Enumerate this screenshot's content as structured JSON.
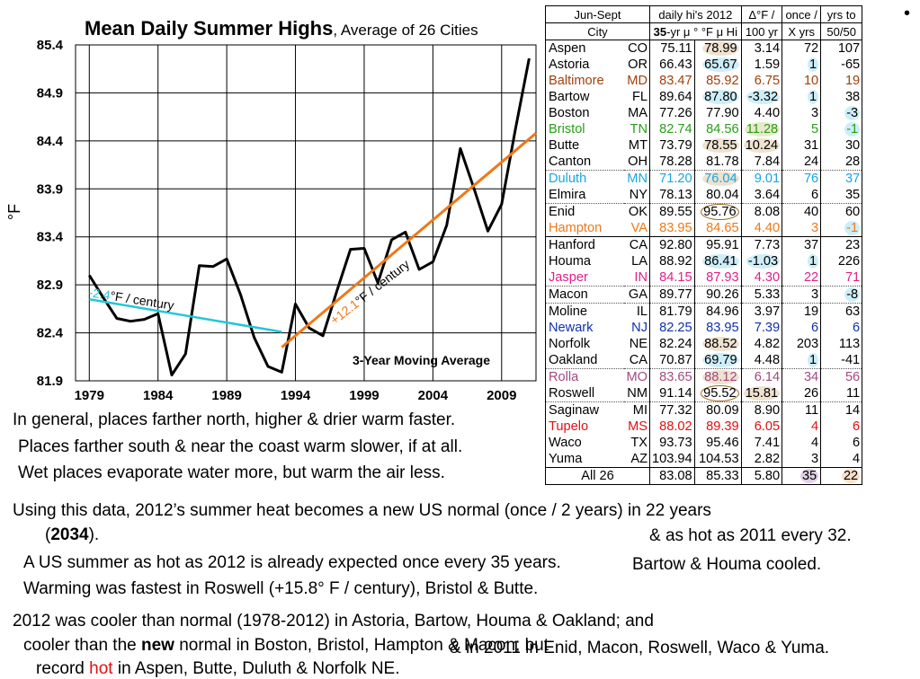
{
  "chart_data": {
    "type": "line",
    "title": "Mean Daily Summer Highs",
    "subtitle": "Average of 26 Cities",
    "ylabel": "°F",
    "xlim": [
      1978,
      2011.5
    ],
    "ylim": [
      81.9,
      85.4
    ],
    "yticks": [
      "81.9",
      "82.4",
      "82.9",
      "83.4",
      "83.9",
      "84.4",
      "84.9",
      "85.4"
    ],
    "xticks": [
      "1979",
      "1984",
      "1989",
      "1994",
      "1999",
      "2004",
      "2009"
    ],
    "grid": true,
    "annotation": "3-Year Moving Average",
    "series": [
      {
        "color": "#000000",
        "x": [
          1979,
          1980,
          1981,
          1982,
          1983,
          1984,
          1985,
          1986,
          1987,
          1988,
          1989,
          1990,
          1991,
          1992,
          1993,
          1994,
          1995,
          1996,
          1997,
          1998,
          1999,
          2000,
          2001,
          2002,
          2003,
          2004,
          2005,
          2006,
          2007,
          2008,
          2009,
          2010,
          2011
        ],
        "y": [
          83.0,
          82.77,
          82.55,
          82.52,
          82.54,
          82.6,
          81.96,
          82.18,
          83.1,
          83.09,
          83.17,
          82.8,
          82.35,
          82.05,
          81.99,
          82.7,
          82.45,
          82.37,
          82.83,
          83.27,
          83.28,
          82.92,
          83.37,
          83.45,
          83.06,
          83.14,
          83.52,
          84.32,
          83.9,
          83.46,
          83.74,
          84.52,
          85.26
        ]
      },
      {
        "color": "#22c7d6",
        "x": [
          1979,
          1993
        ],
        "y": [
          82.75,
          82.41
        ],
        "label_prefix": "-2.4",
        "label_suffix": "°F / century"
      },
      {
        "color": "#f07818",
        "x": [
          1993,
          2011.5
        ],
        "y": [
          82.25,
          84.48
        ],
        "label_prefix": "+12.1",
        "label_suffix": "°F / century"
      }
    ]
  },
  "table": {
    "header1": [
      "Jun-Sept",
      "daily hi's  2012",
      "Δ°F /",
      "once /",
      "yrs to"
    ],
    "header2": [
      "City",
      "35-yr μ ° °F μ Hi",
      "100 yr",
      "X yrs",
      "50/50"
    ],
    "header2_bold": "35",
    "header2_rest": "-yr μ °",
    "header2_hi": "°F μ Hi",
    "rows": [
      {
        "city": "Aspen",
        "st": "CO",
        "avg": "75.11",
        "y2012": "78.99",
        "d": "3.14",
        "once": "72",
        "yrs": "107",
        "color": "#000000"
      },
      {
        "city": "Astoria",
        "st": "OR",
        "avg": "66.43",
        "y2012": "65.67",
        "d": "1.59",
        "once": "1",
        "yrs": "-65",
        "color": "#000000"
      },
      {
        "city": "Baltimore",
        "st": "MD",
        "avg": "83.47",
        "y2012": "85.92",
        "d": "6.75",
        "once": "10",
        "yrs": "19",
        "color": "#a0400a"
      },
      {
        "city": "Bartow",
        "st": "FL",
        "avg": "89.64",
        "y2012": "87.80",
        "d": "-3.32",
        "once": "1",
        "yrs": "38",
        "color": "#000000"
      },
      {
        "city": "Boston",
        "st": "MA",
        "avg": "77.26",
        "y2012": "77.90",
        "d": "4.40",
        "once": "3",
        "yrs": "-3",
        "color": "#000000"
      },
      {
        "city": "Bristol",
        "st": "TN",
        "avg": "82.74",
        "y2012": "84.56",
        "d": "11.28",
        "once": "5",
        "yrs": "-1",
        "color": "#2a9d1a"
      },
      {
        "city": "Butte",
        "st": "MT",
        "avg": "73.79",
        "y2012": "78.55",
        "d": "10.24",
        "once": "31",
        "yrs": "30",
        "color": "#000000"
      },
      {
        "city": "Canton",
        "st": "OH",
        "avg": "78.28",
        "y2012": "81.78",
        "d": "7.84",
        "once": "24",
        "yrs": "28",
        "color": "#000000"
      },
      {
        "city": "Duluth",
        "st": "MN",
        "avg": "71.20",
        "y2012": "76.04",
        "d": "9.01",
        "once": "76",
        "yrs": "37",
        "color": "#1aa6e0"
      },
      {
        "city": "Elmira",
        "st": "NY",
        "avg": "78.13",
        "y2012": "80.04",
        "d": "3.64",
        "once": "6",
        "yrs": "35",
        "color": "#000000"
      },
      {
        "city": "Enid",
        "st": "OK",
        "avg": "89.55",
        "y2012": "95.76",
        "d": "8.08",
        "once": "40",
        "yrs": "60",
        "color": "#000000"
      },
      {
        "city": "Hampton",
        "st": "VA",
        "avg": "83.95",
        "y2012": "84.65",
        "d": "4.40",
        "once": "3",
        "yrs": "-1",
        "color": "#f07818"
      },
      {
        "city": "Hanford",
        "st": "CA",
        "avg": "92.80",
        "y2012": "95.91",
        "d": "7.73",
        "once": "37",
        "yrs": "23",
        "color": "#000000"
      },
      {
        "city": "Houma",
        "st": "LA",
        "avg": "88.92",
        "y2012": "86.41",
        "d": "-1.03",
        "once": "1",
        "yrs": "226",
        "color": "#000000"
      },
      {
        "city": "Jasper",
        "st": "IN",
        "avg": "84.15",
        "y2012": "87.93",
        "d": "4.30",
        "once": "22",
        "yrs": "71",
        "color": "#e0208a"
      },
      {
        "city": "Macon",
        "st": "GA",
        "avg": "89.77",
        "y2012": "90.26",
        "d": "5.33",
        "once": "3",
        "yrs": "-8",
        "color": "#000000"
      },
      {
        "city": "Moline",
        "st": "IL",
        "avg": "81.79",
        "y2012": "84.96",
        "d": "3.97",
        "once": "19",
        "yrs": "63",
        "color": "#000000"
      },
      {
        "city": "Newark",
        "st": "NJ",
        "avg": "82.25",
        "y2012": "83.95",
        "d": "7.39",
        "once": "6",
        "yrs": "6",
        "color": "#1030b0"
      },
      {
        "city": "Norfolk",
        "st": "NE",
        "avg": "82.24",
        "y2012": "88.52",
        "d": "4.82",
        "once": "203",
        "yrs": "113",
        "color": "#000000"
      },
      {
        "city": "Oakland",
        "st": "CA",
        "avg": "70.87",
        "y2012": "69.79",
        "d": "4.48",
        "once": "1",
        "yrs": "-41",
        "color": "#000000"
      },
      {
        "city": "Rolla",
        "st": "MO",
        "avg": "83.65",
        "y2012": "88.12",
        "d": "6.14",
        "once": "34",
        "yrs": "56",
        "color": "#a04a80"
      },
      {
        "city": "Roswell",
        "st": "NM",
        "avg": "91.14",
        "y2012": "95.52",
        "d": "15.81",
        "once": "26",
        "yrs": "11",
        "color": "#000000"
      },
      {
        "city": "Saginaw",
        "st": "MI",
        "avg": "77.32",
        "y2012": "80.09",
        "d": "8.90",
        "once": "11",
        "yrs": "14",
        "color": "#000000"
      },
      {
        "city": "Tupelo",
        "st": "MS",
        "avg": "88.02",
        "y2012": "89.39",
        "d": "6.05",
        "once": "4",
        "yrs": "6",
        "color": "#e01010"
      },
      {
        "city": "Waco",
        "st": "TX",
        "avg": "93.73",
        "y2012": "95.46",
        "d": "7.41",
        "once": "4",
        "yrs": "6",
        "color": "#000000"
      },
      {
        "city": "Yuma",
        "st": "AZ",
        "avg": "103.94",
        "y2012": "104.53",
        "d": "2.82",
        "once": "3",
        "yrs": "4",
        "color": "#000000"
      }
    ],
    "all": {
      "label": "All 26",
      "avg": "83.08",
      "y2012": "85.33",
      "d": "5.80",
      "once": "35",
      "yrs": "22"
    },
    "highlight_colors": {
      "blue": "#cdeef8",
      "tan": "#efe2cf",
      "olive": "#e8e9c8",
      "purple": "#e0cfe6",
      "orange": "#fbe1cc"
    }
  },
  "notes": {
    "n1": "In general, places farther north, higher & drier warm faster.",
    "n2": "Places farther south & near the coast warm slower, if at all.",
    "n3": "Wet places evaporate water more, but warm the air less.",
    "n4": "Using this data, 2012’s summer heat becomes a new US normal (once / 2 years) in 22 years",
    "n5_pre": "(",
    "n5_bold": "2034",
    "n5_post": ").",
    "n6": "& as hot as 2011 every 32.",
    "n7": "A US summer as hot as 2012 is already expected once every 35 years.",
    "n8": "Bartow & Houma cooled.",
    "n9": "Warming was fastest in Roswell (+15.8°  F / century), Bristol & Butte.",
    "n10": "2012 was cooler than normal (1978-2012) in Astoria, Bartow, Houma & Oakland; and",
    "n11_pre": "cooler than the ",
    "n11_bold": "new",
    "n11_post": " normal in Boston, Bristol, Hampton & Macon; but",
    "n12": "& in 2011 in Enid, Macon, Roswell, Waco & Yuma.",
    "n13_pre": "record ",
    "n13_red": "hot",
    "n13_post": " in Aspen, Butte, Duluth & Norfolk NE.",
    "bullet": "•"
  }
}
